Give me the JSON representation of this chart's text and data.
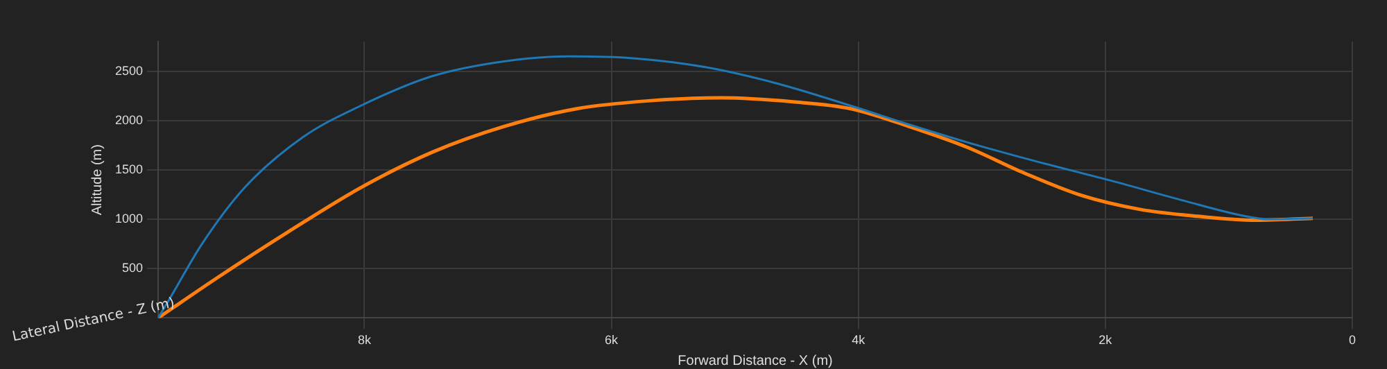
{
  "chart_data": {
    "type": "line",
    "xlabel": "Forward Distance - X (m)",
    "ylabel": "Altitude (m)",
    "annotations": [
      "Lateral Distance - Z (m)"
    ],
    "xlim": [
      9670,
      0
    ],
    "xticks": [
      {
        "value": 8000,
        "label": "8k"
      },
      {
        "value": 6000,
        "label": "6k"
      },
      {
        "value": 4000,
        "label": "4k"
      },
      {
        "value": 2000,
        "label": "2k"
      },
      0
    ],
    "ylim": [
      0,
      2800
    ],
    "yticks": [
      500,
      1000,
      1500,
      2000,
      2500
    ],
    "grid": true,
    "legend": false,
    "marker": "none",
    "line_style": "solid",
    "series": [
      {
        "color": "#1f77b4",
        "x": [
          9670,
          9560,
          9320,
          8970,
          8500,
          8030,
          7450,
          6870,
          6340,
          5810,
          5230,
          4640,
          4060,
          3590,
          3120,
          2540,
          1950,
          1370,
          900,
          670,
          320
        ],
        "values": [
          0,
          230,
          740,
          1320,
          1830,
          2150,
          2450,
          2600,
          2650,
          2630,
          2540,
          2370,
          2150,
          1960,
          1780,
          1580,
          1390,
          1190,
          1040,
          1000,
          1010
        ]
      },
      {
        "color": "#ff7f0e",
        "x": [
          9670,
          9200,
          8620,
          8030,
          7450,
          6870,
          6280,
          5700,
          5110,
          4530,
          4060,
          3590,
          3120,
          2660,
          2190,
          1720,
          1250,
          780,
          320
        ],
        "values": [
          0,
          400,
          870,
          1320,
          1680,
          1940,
          2120,
          2200,
          2230,
          2190,
          2120,
          1940,
          1730,
          1470,
          1240,
          1100,
          1030,
          990,
          1010
        ]
      }
    ]
  }
}
